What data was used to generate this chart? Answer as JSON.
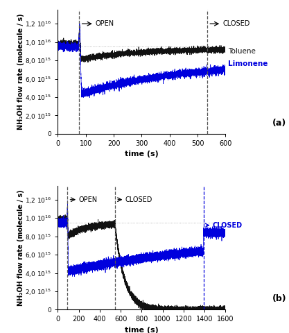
{
  "panel_a": {
    "xlim": [
      0,
      600
    ],
    "ylim": [
      0,
      1.35e+16
    ],
    "yticks": [
      0,
      2000000000000000.0,
      4000000000000000.0,
      6000000000000000.0,
      8000000000000000.0,
      1e+16,
      1.2e+16
    ],
    "xticks": [
      0,
      100,
      200,
      300,
      400,
      500,
      600
    ],
    "open_x": 75,
    "closed_x": 535,
    "baseline": 9500000000000000.0,
    "toluene_init": 9850000000000000.0,
    "toluene_drop": 8100000000000000.0,
    "toluene_recover": 9250000000000000.0,
    "limonene_init": 9500000000000000.0,
    "limonene_drop": 4350000000000000.0,
    "limonene_recover": 7800000000000000.0,
    "open_label": "OPEN",
    "closed_label": "CLOSED",
    "toluene_label": "Toluene",
    "limonene_label": "Limonene",
    "panel_label": "(a)"
  },
  "panel_b": {
    "xlim": [
      0,
      1600
    ],
    "ylim": [
      0,
      1.35e+16
    ],
    "yticks": [
      0,
      2000000000000000.0,
      4000000000000000.0,
      6000000000000000.0,
      8000000000000000.0,
      1e+16,
      1.2e+16
    ],
    "xticks": [
      0,
      200,
      400,
      600,
      800,
      1000,
      1200,
      1400,
      1600
    ],
    "open_x": 90,
    "closed_black_x": 545,
    "closed_blue_x": 1390,
    "baseline": 9500000000000000.0,
    "toluene_init": 9850000000000000.0,
    "toluene_drop": 8000000000000000.0,
    "toluene_recover": 9350000000000000.0,
    "toluene_decay_tau": 90,
    "limonene_init": 9500000000000000.0,
    "limonene_drop": 4200000000000000.0,
    "limonene_recover": 8400000000000000.0,
    "open_label": "OPEN",
    "closed_black_label": "CLOSED",
    "closed_blue_label": "CLOSED",
    "panel_label": "(b)"
  },
  "ylabel": "NH₂OH flow rate (molecule / s)",
  "xlabel": "time (s)",
  "black_color": "#111111",
  "blue_color": "#0000dd",
  "noise_amp": 140000000000000.0,
  "seed": 42
}
